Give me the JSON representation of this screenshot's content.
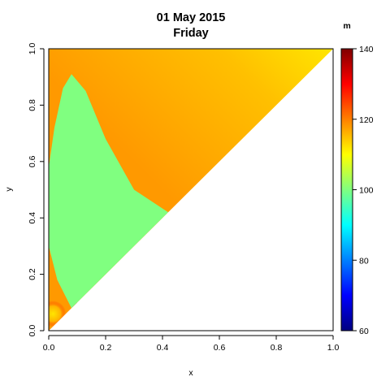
{
  "chart_data": {
    "type": "heatmap",
    "title": "01 May 2015",
    "subtitle": "Friday",
    "xlabel": "x",
    "ylabel": "y",
    "xlim": [
      0,
      1
    ],
    "ylim": [
      0,
      1
    ],
    "x_ticks": [
      "0.0",
      "0.2",
      "0.4",
      "0.6",
      "0.8",
      "1.0"
    ],
    "y_ticks": [
      "0.0",
      "0.2",
      "0.4",
      "0.6",
      "0.8",
      "1.0"
    ],
    "domain": "upper triangle (y >= x)",
    "grid": false,
    "colorbar": {
      "label": "m",
      "min": 60,
      "max": 140,
      "ticks": [
        "60",
        "80",
        "100",
        "120",
        "140"
      ],
      "colors": [
        "#000080",
        "#0000ff",
        "#0080ff",
        "#00ffff",
        "#80ff80",
        "#ffff00",
        "#ff8000",
        "#ff0000",
        "#800000"
      ]
    },
    "regions": [
      {
        "name": "main field",
        "value": 118
      },
      {
        "name": "upper-right corner",
        "value": 112
      },
      {
        "name": "left lobe",
        "value": 100,
        "boundary": [
          [
            0,
            0.58
          ],
          [
            0.02,
            0.72
          ],
          [
            0.05,
            0.86
          ],
          [
            0.08,
            0.91
          ],
          [
            0.13,
            0.85
          ],
          [
            0.2,
            0.68
          ],
          [
            0.3,
            0.5
          ],
          [
            0.42,
            0.42
          ],
          [
            0.08,
            0.08
          ],
          [
            0.03,
            0.18
          ],
          [
            0,
            0.3
          ]
        ]
      },
      {
        "name": "lower-left edge",
        "value": 128
      },
      {
        "name": "origin hot spot",
        "value": 112
      }
    ]
  }
}
